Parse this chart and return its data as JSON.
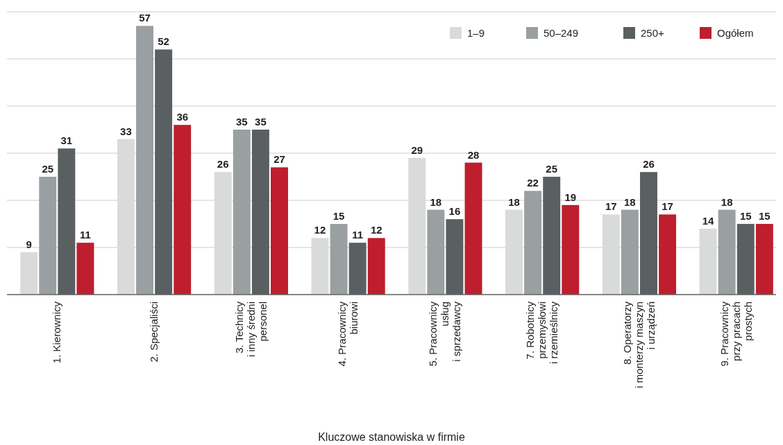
{
  "chart_data": {
    "type": "bar",
    "xlabel": "Kluczowe stanowiska w firmie",
    "categories": [
      "1. Kierownicy",
      "2. Specjaliści",
      "3. Technicy\ni inny średni\npersonel",
      "4. Pracownicy\nbiurowi",
      "5. Pracownicy\nusług\ni sprzedawcy",
      "7. Robotnicy\nprzemysłowi\ni rzemieślnicy",
      "8. Operatorzy\ni monterzy maszyn\ni urządzeń",
      "9. Pracownicy\nprzy pracach\nprostych"
    ],
    "series": [
      {
        "name": "1–9",
        "color": "#d9dbdb",
        "values": [
          9,
          33,
          26,
          12,
          29,
          18,
          17,
          14
        ]
      },
      {
        "name": "50–249",
        "color": "#9a9fa1",
        "values": [
          25,
          57,
          35,
          15,
          18,
          22,
          18,
          18
        ]
      },
      {
        "name": "250+",
        "color": "#5a5f62",
        "values": [
          31,
          52,
          35,
          11,
          16,
          25,
          26,
          15
        ]
      },
      {
        "name": "Ogółem",
        "color": "#be1e2d",
        "values": [
          11,
          36,
          27,
          12,
          28,
          19,
          17,
          15
        ]
      }
    ],
    "ylim": [
      0,
      60
    ],
    "yticks": [
      {
        "value": 0,
        "label": null
      },
      {
        "value": 10,
        "label": null
      },
      {
        "value": 20,
        "label": null
      },
      {
        "value": 30,
        "label": null
      },
      {
        "value": 40,
        "label": null
      },
      {
        "value": 50,
        "label": null
      },
      {
        "value": 60,
        "label": null
      }
    ],
    "tick_labels": "x",
    "grid": "y",
    "legend": "top right",
    "data_labels": true
  }
}
